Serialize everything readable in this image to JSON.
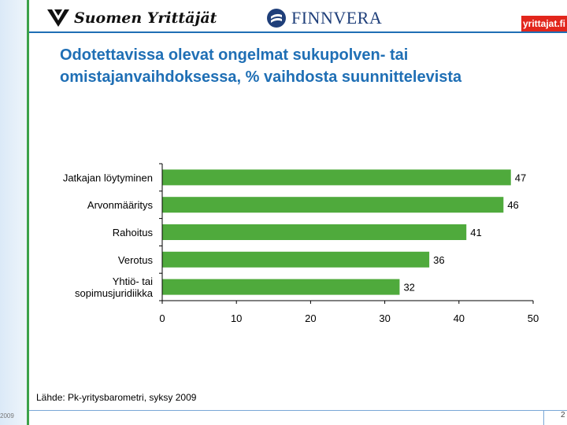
{
  "header": {
    "logo_suomen_yrittajat": "Suomen Yrittäjät",
    "logo_finnvera": "FINNVERA",
    "logo_yrittajat_fi": "yrittajat.fi"
  },
  "title_line1": "Odotettavissa olevat ongelmat sukupolven- tai",
  "title_line2": "omistajanvaihdoksessa, % vaihdosta suunnittelevista",
  "source": "Lähde: Pk-yritysbarometri, syksy 2009",
  "footer": {
    "left": "2009",
    "right": "2"
  },
  "colors": {
    "bar": "#4faa3c",
    "title": "#1f6fb5",
    "accent_strip": "#3da24a"
  },
  "chart_data": {
    "type": "bar",
    "orientation": "horizontal",
    "categories": [
      [
        "Jatkajan löytyminen"
      ],
      [
        "Arvonmääritys"
      ],
      [
        "Rahoitus"
      ],
      [
        "Verotus"
      ],
      [
        "Yhtiö- tai",
        "sopimusjuridiikka"
      ]
    ],
    "values": [
      47,
      46,
      41,
      36,
      32
    ],
    "xlim": [
      0,
      50
    ],
    "xticks": [
      0,
      10,
      20,
      30,
      40,
      50
    ],
    "grid": false,
    "legend": "none"
  }
}
